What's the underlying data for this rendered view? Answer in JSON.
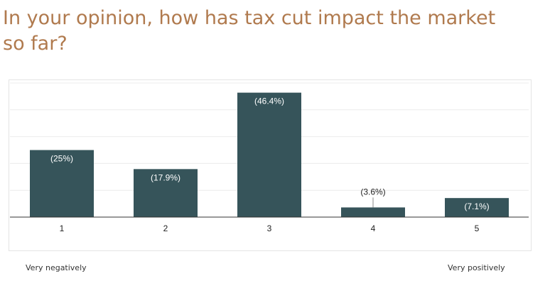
{
  "question": {
    "title": "In your opinion, how has tax cut impact the market so far?"
  },
  "chart_data": {
    "type": "bar",
    "title": "In your opinion, how has tax cut impact the market so far?",
    "categories": [
      "1",
      "2",
      "3",
      "4",
      "5"
    ],
    "values": [
      25,
      17.9,
      46.4,
      3.6,
      7.1
    ],
    "data_labels": [
      "(25%)",
      "(17.9%)",
      "(46.4%)",
      "(3.6%)",
      "(7.1%)"
    ],
    "ylim": [
      0,
      50
    ],
    "grid": true,
    "xlabel": "",
    "ylabel": "",
    "bar_color": "#36545a"
  },
  "scale": {
    "low_label": "Very negatively",
    "high_label": "Very positively"
  }
}
